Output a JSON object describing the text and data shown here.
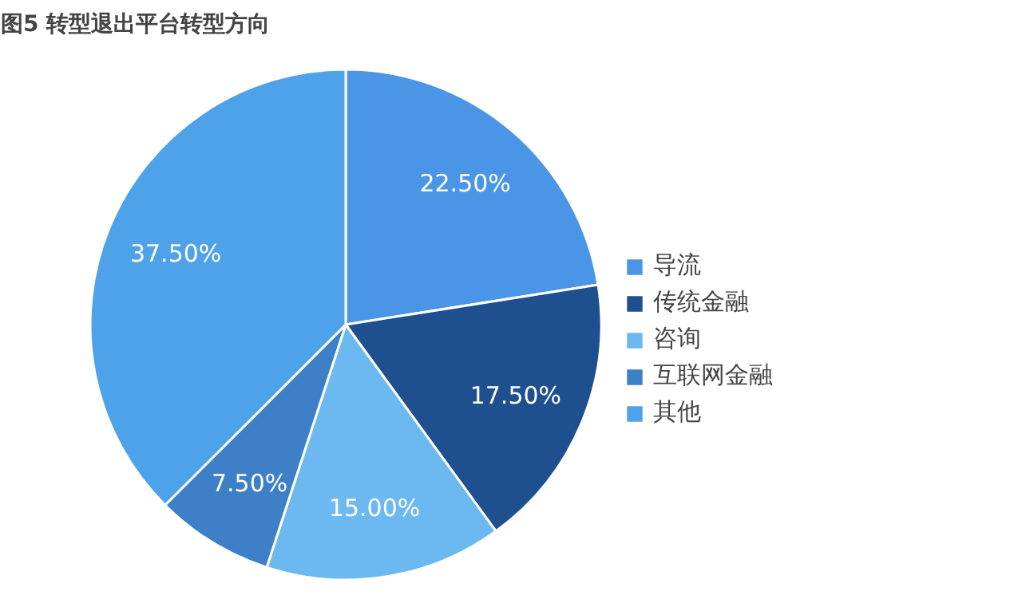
{
  "chart_data": {
    "type": "pie",
    "title": "图5 转型退出平台转型方向",
    "categories": [
      "导流",
      "传统金融",
      "咨询",
      "互联网金融",
      "其他"
    ],
    "values": [
      22.5,
      17.5,
      15,
      7.5,
      37.5
    ],
    "colors": [
      "#4b95e6",
      "#1e4f8f",
      "#6bb9f0",
      "#3d80c8",
      "#4ea2ea"
    ],
    "value_labels": [
      "22.50%",
      "17.50%",
      "15.00%",
      "7.50%",
      "37.50%"
    ],
    "legend": "right"
  }
}
